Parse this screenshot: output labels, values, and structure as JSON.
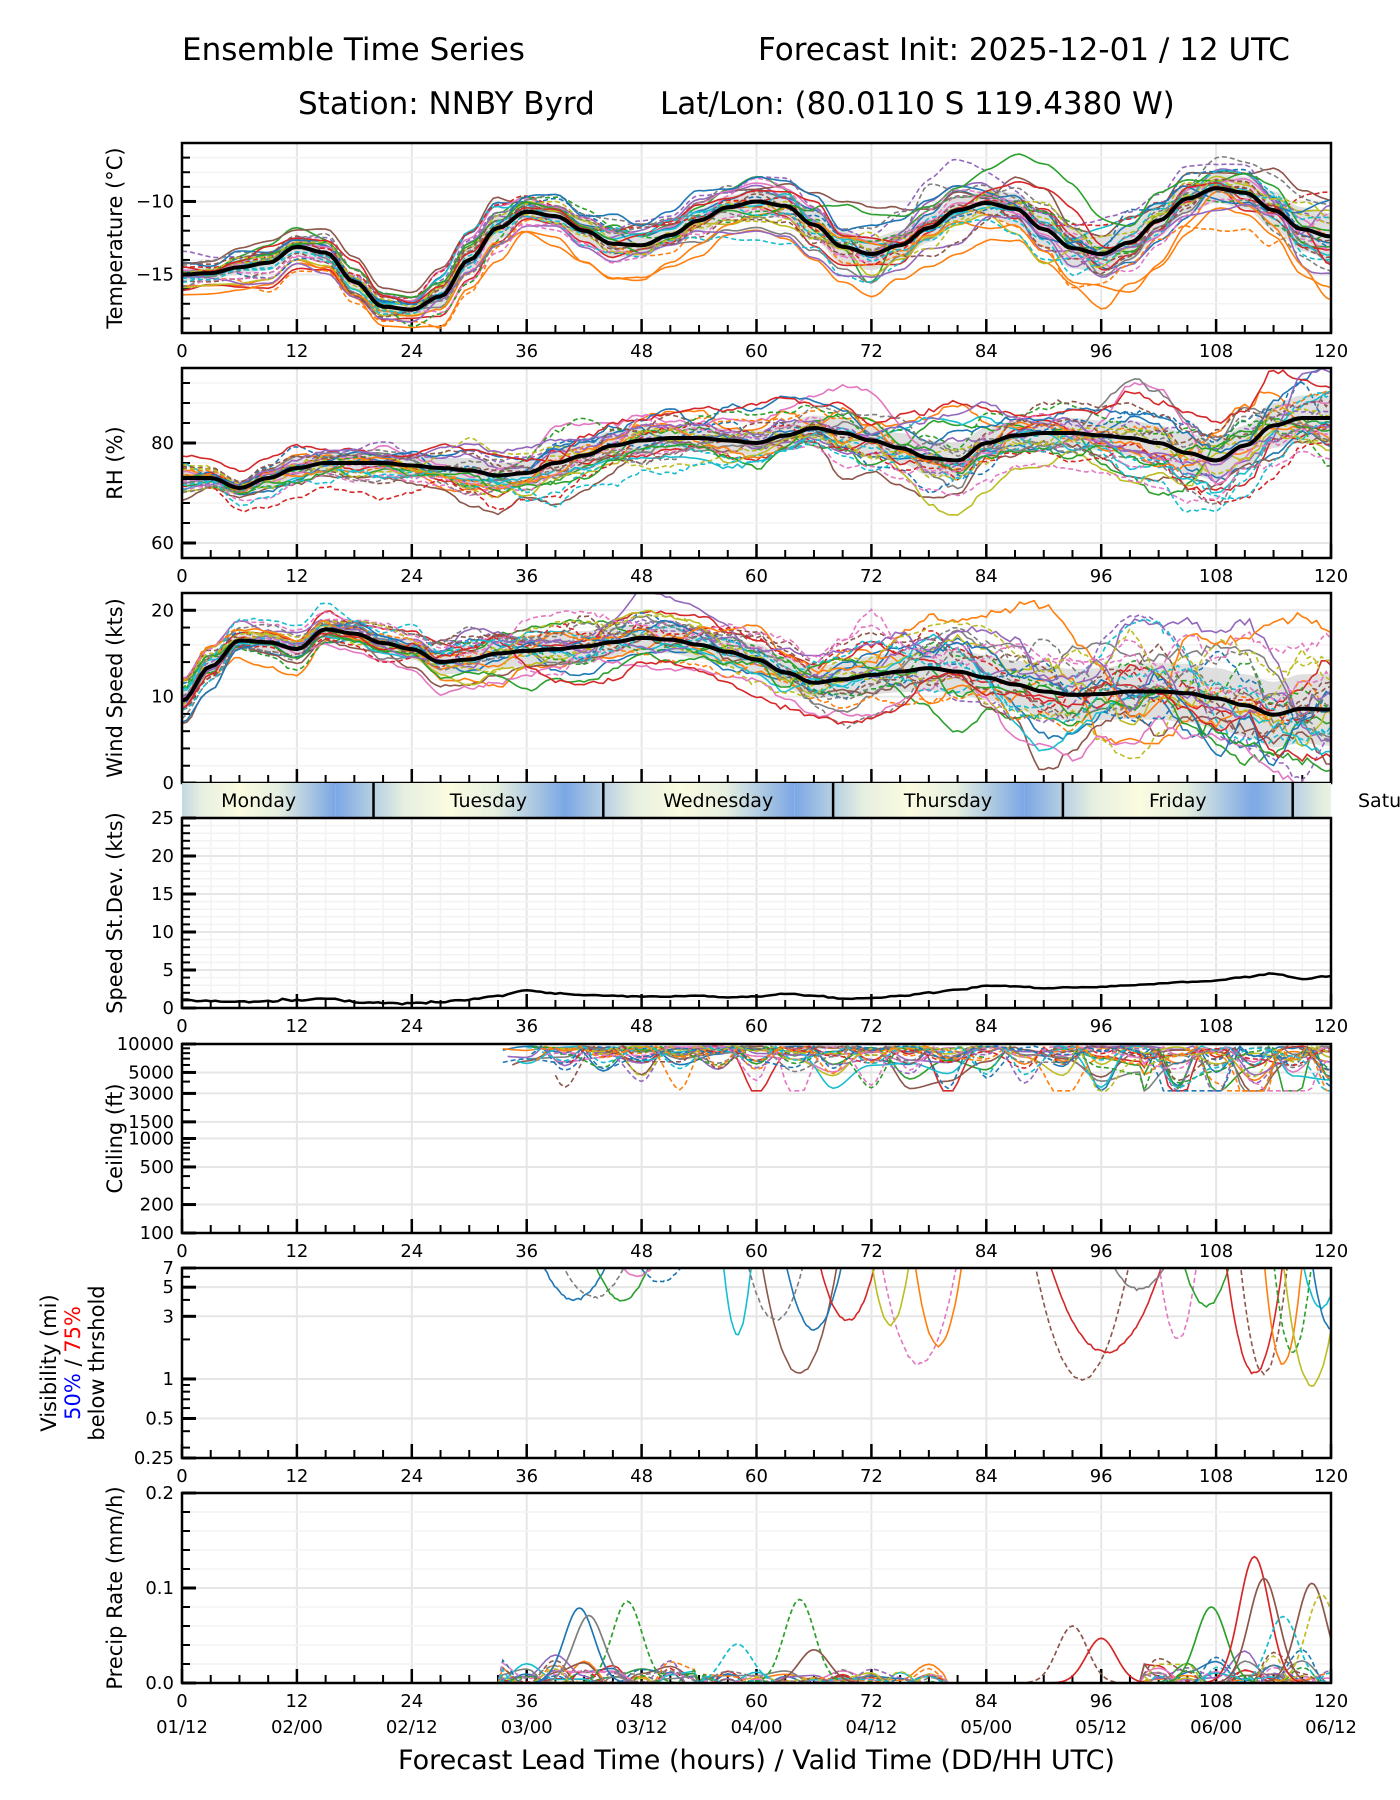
{
  "header": {
    "title_left": "Ensemble Time Series",
    "title_right": "Forecast Init: 2025-12-01 / 12 UTC",
    "station": "Station: NNBY Byrd",
    "latlon": "Lat/Lon: (80.0110 S 119.4380 W)"
  },
  "xaxis": {
    "label": "Forecast Lead Time (hours) / Valid Time (DD/HH UTC)",
    "lead_ticks": [
      "0",
      "12",
      "24",
      "36",
      "48",
      "60",
      "72",
      "84",
      "96",
      "108",
      "120"
    ],
    "valid_ticks": [
      "01/12",
      "02/00",
      "02/12",
      "03/00",
      "03/12",
      "04/00",
      "04/12",
      "05/00",
      "05/12",
      "06/00",
      "06/12"
    ],
    "range": [
      0,
      120
    ]
  },
  "day_band": {
    "days": [
      {
        "label": "Monday",
        "start": 0,
        "end": 20
      },
      {
        "label": "Tuesday",
        "start": 20,
        "end": 44
      },
      {
        "label": "Wednesday",
        "start": 44,
        "end": 68
      },
      {
        "label": "Thursday",
        "start": 68,
        "end": 92
      },
      {
        "label": "Friday",
        "start": 92,
        "end": 116
      },
      {
        "label": "Saturday",
        "start": 116,
        "end": 140
      }
    ],
    "overflow_label": "Satu"
  },
  "legend_colors": [
    "#1f77b4",
    "#ff7f0e",
    "#2ca02c",
    "#d62728",
    "#9467bd",
    "#8c564b",
    "#e377c2",
    "#7f7f7f",
    "#bcbd22",
    "#17becf"
  ],
  "mean_color": "#000000",
  "spread_color": "#d9d9d9",
  "visibility_label": {
    "line1": "Visibility (mi)",
    "pct50": "50%",
    "sep": " / ",
    "pct75": "75%",
    "line3": "below thrshold",
    "pct50_color": "#0000ff",
    "pct75_color": "#ff0000"
  },
  "chart_data": [
    {
      "type": "line",
      "title": "Temperature",
      "ylabel": "Temperature (°C)",
      "ylim": [
        -19,
        -6
      ],
      "yticks": [
        -15,
        -10
      ],
      "ytick_labels": [
        "−15",
        "−10"
      ],
      "grid": true,
      "x": [
        0,
        3,
        6,
        9,
        12,
        15,
        18,
        21,
        24,
        27,
        30,
        33,
        36,
        39,
        42,
        45,
        48,
        51,
        54,
        57,
        60,
        63,
        66,
        69,
        72,
        75,
        78,
        81,
        84,
        87,
        90,
        93,
        96,
        99,
        102,
        105,
        108,
        111,
        114,
        117,
        120
      ],
      "series": [
        {
          "name": "ensemble mean",
          "values": [
            -15.0,
            -14.9,
            -14.5,
            -14.2,
            -13.1,
            -13.5,
            -15.5,
            -17.2,
            -17.4,
            -16.5,
            -14.0,
            -11.8,
            -10.7,
            -11.0,
            -12.0,
            -12.9,
            -13.0,
            -12.3,
            -11.3,
            -10.4,
            -10.0,
            -10.3,
            -11.6,
            -13.1,
            -13.6,
            -13.0,
            -11.8,
            -10.6,
            -10.1,
            -10.5,
            -11.9,
            -13.2,
            -13.6,
            -12.8,
            -11.3,
            -9.8,
            -9.1,
            -9.4,
            -10.6,
            -11.9,
            -12.4
          ]
        },
        {
          "name": "spread",
          "values": [
            0.4,
            0.4,
            0.5,
            0.5,
            0.5,
            0.6,
            0.6,
            0.5,
            0.5,
            0.7,
            0.8,
            0.8,
            0.6,
            0.6,
            0.7,
            0.9,
            0.8,
            0.7,
            0.8,
            0.8,
            0.8,
            0.9,
            1.0,
            1.2,
            1.1,
            1.0,
            1.0,
            0.9,
            0.9,
            1.1,
            1.3,
            1.4,
            1.3,
            1.2,
            1.1,
            1.0,
            1.0,
            1.1,
            1.3,
            1.5,
            1.6
          ]
        }
      ]
    },
    {
      "type": "line",
      "title": "Relative Humidity",
      "ylabel": "RH (%)",
      "ylim": [
        57,
        95
      ],
      "yticks": [
        60,
        80
      ],
      "ytick_labels": [
        "60",
        "80"
      ],
      "grid": true,
      "x": [
        0,
        3,
        6,
        9,
        12,
        15,
        18,
        21,
        24,
        27,
        30,
        33,
        36,
        39,
        42,
        45,
        48,
        51,
        54,
        57,
        60,
        63,
        66,
        69,
        72,
        75,
        78,
        81,
        84,
        87,
        90,
        93,
        96,
        99,
        102,
        105,
        108,
        111,
        114,
        117,
        120
      ],
      "series": [
        {
          "name": "ensemble mean",
          "values": [
            73,
            73,
            71,
            73,
            75,
            76,
            76,
            76,
            75.5,
            75,
            74.5,
            73.5,
            74,
            76,
            77.5,
            79.5,
            80.5,
            81,
            81,
            80.5,
            80,
            81.5,
            83,
            82,
            80.5,
            79,
            77,
            76.5,
            80,
            81.5,
            82,
            82,
            81.5,
            81,
            80,
            78,
            76.5,
            79.5,
            83.5,
            85,
            85
          ]
        },
        {
          "name": "spread",
          "values": [
            1.5,
            1.5,
            1.5,
            2,
            2,
            2,
            2,
            2,
            2,
            2,
            2.5,
            2.5,
            2.5,
            3,
            3,
            3,
            3,
            2.5,
            2.5,
            2.5,
            2.5,
            2.5,
            2.5,
            3,
            3,
            3,
            3.5,
            3.5,
            3,
            3,
            3,
            3,
            3,
            3.5,
            3.5,
            4,
            4,
            4,
            4.5,
            4.5,
            4.5
          ]
        }
      ]
    },
    {
      "type": "line",
      "title": "Wind Speed",
      "ylabel": "Wind Speed (kts)",
      "ylim": [
        0,
        22
      ],
      "yticks": [
        0,
        10,
        20
      ],
      "ytick_labels": [
        "0",
        "10",
        "20"
      ],
      "grid": true,
      "x": [
        0,
        3,
        6,
        9,
        12,
        15,
        18,
        21,
        24,
        27,
        30,
        33,
        36,
        39,
        42,
        45,
        48,
        51,
        54,
        57,
        60,
        63,
        66,
        69,
        72,
        75,
        78,
        81,
        84,
        87,
        90,
        93,
        96,
        99,
        102,
        105,
        108,
        111,
        114,
        117,
        120
      ],
      "series": [
        {
          "name": "ensemble mean",
          "values": [
            9.5,
            13.5,
            16.5,
            16.3,
            15.5,
            17.8,
            17.3,
            16.2,
            15.5,
            14.0,
            14.3,
            15.0,
            15.3,
            15.5,
            15.8,
            16.3,
            16.8,
            16.6,
            16.0,
            15.2,
            14.3,
            12.8,
            11.6,
            12.0,
            12.5,
            12.9,
            13.3,
            12.9,
            12.2,
            11.4,
            10.6,
            10.2,
            10.3,
            10.6,
            10.6,
            10.4,
            9.8,
            9.0,
            7.9,
            8.6,
            8.5
          ]
        },
        {
          "name": "spread",
          "values": [
            1.2,
            1.2,
            1.0,
            1.0,
            1.0,
            1.0,
            1.0,
            1.0,
            1.2,
            1.4,
            1.6,
            1.7,
            1.8,
            1.8,
            1.8,
            1.8,
            1.6,
            1.6,
            1.6,
            1.7,
            1.8,
            1.8,
            1.8,
            2.0,
            2.2,
            2.4,
            2.6,
            2.6,
            2.6,
            2.8,
            3.0,
            3.0,
            3.0,
            3.2,
            3.3,
            3.4,
            3.5,
            3.6,
            3.8,
            4.0,
            4.2
          ]
        }
      ]
    },
    {
      "type": "line",
      "title": "Speed Standard Deviation",
      "ylabel": "Speed St.Dev. (kts)",
      "ylim": [
        0,
        25
      ],
      "yticks": [
        0,
        5,
        10,
        15,
        20,
        25
      ],
      "ytick_labels": [
        "0",
        "5",
        "10",
        "15",
        "20",
        "25"
      ],
      "grid": true,
      "x": [
        0,
        3,
        6,
        9,
        12,
        15,
        18,
        21,
        24,
        27,
        30,
        33,
        36,
        39,
        42,
        45,
        48,
        51,
        54,
        57,
        60,
        63,
        66,
        69,
        72,
        75,
        78,
        81,
        84,
        87,
        90,
        93,
        96,
        99,
        102,
        105,
        108,
        111,
        114,
        117,
        120
      ],
      "series": [
        {
          "name": "speed std dev",
          "values": [
            1.0,
            0.9,
            0.8,
            0.9,
            1.0,
            1.2,
            0.8,
            0.7,
            0.6,
            0.8,
            1.1,
            1.6,
            2.3,
            1.9,
            1.7,
            1.6,
            1.5,
            1.5,
            1.6,
            1.4,
            1.5,
            1.9,
            1.6,
            1.2,
            1.3,
            1.6,
            2.0,
            2.4,
            2.9,
            2.9,
            2.6,
            2.7,
            2.8,
            3.0,
            3.2,
            3.4,
            3.6,
            4.1,
            4.5,
            3.8,
            4.2
          ]
        }
      ]
    },
    {
      "type": "line",
      "title": "Ceiling",
      "ylabel": "Ceiling (ft)",
      "yscale": "log",
      "ylim": [
        100,
        10000
      ],
      "yticks": [
        100,
        200,
        500,
        1000,
        1500,
        3000,
        5000,
        10000
      ],
      "ytick_labels": [
        "100",
        "200",
        "500",
        "1000",
        "1500",
        "3000",
        "5000",
        10000
      ],
      "grid": true,
      "note": "members only below 10000 ft between ~33h and 120h, minima around 4500-6000 ft"
    },
    {
      "type": "line",
      "title": "Visibility",
      "ylabel": "Visibility (mi) 50% / 75% below thrshold",
      "yscale": "log",
      "ylim": [
        0.25,
        7
      ],
      "yticks": [
        0.25,
        0.5,
        1,
        3,
        5,
        7
      ],
      "ytick_labels": [
        "0.25",
        "0.5",
        "1",
        "3",
        "5",
        "7"
      ],
      "grid": true,
      "note": "members dip below 7 mi after ~40h, minima near 1 mi around 64h, 77h, 95h, 112h"
    },
    {
      "type": "line",
      "title": "Precipitation Rate",
      "ylabel": "Precip Rate (mm/h)",
      "ylim": [
        0.0,
        0.2
      ],
      "yticks": [
        0.0,
        0.1,
        0.2
      ],
      "ytick_labels": [
        "0.0",
        "0.1",
        "0.2"
      ],
      "grid": true,
      "peaks": [
        {
          "hour": 41.5,
          "value": 0.079,
          "color": "#1f77b4"
        },
        {
          "hour": 46.5,
          "value": 0.086,
          "color": "#2ca02c",
          "dashed": true
        },
        {
          "hour": 42.5,
          "value": 0.071,
          "color": "#7f7f7f"
        },
        {
          "hour": 64.5,
          "value": 0.088,
          "color": "#2ca02c",
          "dashed": true
        },
        {
          "hour": 58,
          "value": 0.041,
          "color": "#17becf",
          "dashed": true
        },
        {
          "hour": 66,
          "value": 0.035,
          "color": "#8c564b"
        },
        {
          "hour": 93,
          "value": 0.06,
          "color": "#8c564b",
          "dashed": true
        },
        {
          "hour": 96,
          "value": 0.047,
          "color": "#d62728"
        },
        {
          "hour": 107.5,
          "value": 0.08,
          "color": "#2ca02c"
        },
        {
          "hour": 112,
          "value": 0.133,
          "color": "#d62728"
        },
        {
          "hour": 113,
          "value": 0.11,
          "color": "#8c564b"
        },
        {
          "hour": 118,
          "value": 0.105,
          "color": "#8c564b"
        },
        {
          "hour": 119,
          "value": 0.093,
          "color": "#bcbd22",
          "dashed": true
        },
        {
          "hour": 115,
          "value": 0.07,
          "color": "#17becf",
          "dashed": true
        }
      ]
    }
  ]
}
